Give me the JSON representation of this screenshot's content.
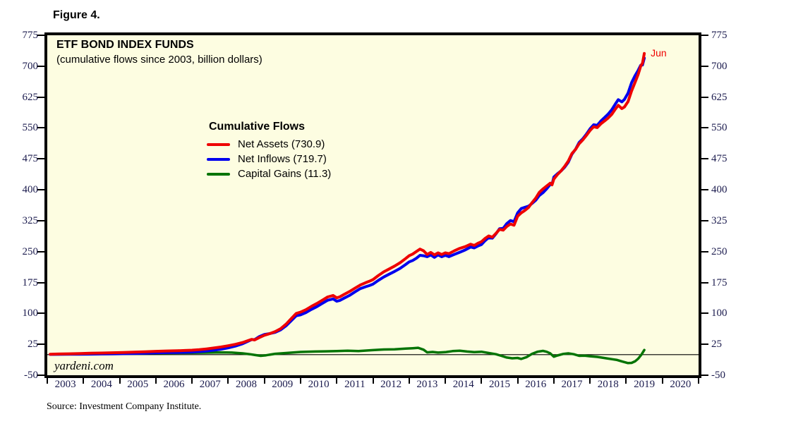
{
  "figure_label": "Figure 4.",
  "chart": {
    "title": "ETF BOND INDEX FUNDS",
    "subtitle": "(cumulative flows since 2003, billion dollars)",
    "watermark": "yardeni.com",
    "end_label": "Jun",
    "source": "Source: Investment Company Institute.",
    "legend": {
      "title": "Cumulative Flows",
      "items": [
        {
          "label": "Net Assets (730.9)",
          "color": "#ee0000"
        },
        {
          "label": "Net Inflows (719.7)",
          "color": "#0000ee"
        },
        {
          "label": "Capital Gains (11.3)",
          "color": "#047404"
        }
      ]
    }
  },
  "chart_data": {
    "type": "line",
    "title": "ETF BOND INDEX FUNDS",
    "subtitle": "(cumulative flows since 2003, billion dollars)",
    "plot_background": "#fdfde1",
    "zero_line": true,
    "x_axis": {
      "start": 2003,
      "end": 2021,
      "tick_labels": [
        "2003",
        "2004",
        "2005",
        "2006",
        "2007",
        "2008",
        "2009",
        "2010",
        "2011",
        "2012",
        "2013",
        "2014",
        "2015",
        "2016",
        "2017",
        "2018",
        "2019",
        "2020"
      ]
    },
    "y_axis": {
      "min": -50,
      "max": 775,
      "step": 75,
      "ticks": [
        775,
        700,
        625,
        550,
        475,
        400,
        325,
        250,
        175,
        100,
        25,
        -50
      ],
      "sides": "both"
    },
    "annotations": [
      {
        "text": "Jun",
        "t": 2019.5,
        "value": 730.9,
        "color": "#ee0000"
      }
    ],
    "series": [
      {
        "name": "Net Assets",
        "final_value": 730.9,
        "color": "#ee0000",
        "width": 4,
        "points": [
          [
            2003.08,
            1
          ],
          [
            2003.3,
            1.5
          ],
          [
            2003.6,
            2
          ],
          [
            2003.9,
            2.8
          ],
          [
            2004.2,
            3.4
          ],
          [
            2004.5,
            4
          ],
          [
            2004.8,
            4.6
          ],
          [
            2005.1,
            5.3
          ],
          [
            2005.4,
            6
          ],
          [
            2005.7,
            6.8
          ],
          [
            2006.0,
            8
          ],
          [
            2006.3,
            8.8
          ],
          [
            2006.6,
            9.4
          ],
          [
            2006.8,
            10
          ],
          [
            2007.0,
            10.8
          ],
          [
            2007.2,
            12
          ],
          [
            2007.4,
            13.8
          ],
          [
            2007.6,
            16
          ],
          [
            2007.8,
            18.5
          ],
          [
            2008.0,
            21.5
          ],
          [
            2008.2,
            25
          ],
          [
            2008.4,
            29.5
          ],
          [
            2008.55,
            34
          ],
          [
            2008.65,
            37
          ],
          [
            2008.73,
            35.5
          ],
          [
            2008.85,
            41
          ],
          [
            2009.0,
            47
          ],
          [
            2009.15,
            51
          ],
          [
            2009.3,
            56
          ],
          [
            2009.45,
            63
          ],
          [
            2009.6,
            74
          ],
          [
            2009.75,
            88
          ],
          [
            2009.88,
            100
          ],
          [
            2010.0,
            103
          ],
          [
            2010.15,
            109
          ],
          [
            2010.3,
            117
          ],
          [
            2010.45,
            124
          ],
          [
            2010.6,
            132
          ],
          [
            2010.75,
            140
          ],
          [
            2010.9,
            143.5
          ],
          [
            2011.0,
            138
          ],
          [
            2011.08,
            140
          ],
          [
            2011.2,
            146
          ],
          [
            2011.35,
            153
          ],
          [
            2011.5,
            161
          ],
          [
            2011.65,
            169
          ],
          [
            2011.8,
            174.5
          ],
          [
            2011.9,
            178
          ],
          [
            2012.0,
            182
          ],
          [
            2012.15,
            192
          ],
          [
            2012.3,
            201
          ],
          [
            2012.45,
            208
          ],
          [
            2012.6,
            215
          ],
          [
            2012.75,
            223
          ],
          [
            2012.9,
            233
          ],
          [
            2013.0,
            240
          ],
          [
            2013.1,
            244
          ],
          [
            2013.2,
            250
          ],
          [
            2013.3,
            256
          ],
          [
            2013.4,
            252
          ],
          [
            2013.5,
            243
          ],
          [
            2013.6,
            248
          ],
          [
            2013.7,
            242
          ],
          [
            2013.8,
            247
          ],
          [
            2013.9,
            243
          ],
          [
            2014.0,
            247
          ],
          [
            2014.1,
            245
          ],
          [
            2014.25,
            252
          ],
          [
            2014.4,
            258
          ],
          [
            2014.55,
            262
          ],
          [
            2014.7,
            268
          ],
          [
            2014.8,
            265
          ],
          [
            2014.9,
            270
          ],
          [
            2015.0,
            274
          ],
          [
            2015.1,
            282
          ],
          [
            2015.2,
            288
          ],
          [
            2015.3,
            285
          ],
          [
            2015.4,
            294
          ],
          [
            2015.5,
            304
          ],
          [
            2015.6,
            302
          ],
          [
            2015.7,
            311
          ],
          [
            2015.8,
            317
          ],
          [
            2015.9,
            314
          ],
          [
            2016.0,
            336
          ],
          [
            2016.1,
            344
          ],
          [
            2016.2,
            350
          ],
          [
            2016.3,
            357
          ],
          [
            2016.4,
            369
          ],
          [
            2016.5,
            380
          ],
          [
            2016.6,
            394
          ],
          [
            2016.7,
            402
          ],
          [
            2016.8,
            409
          ],
          [
            2016.9,
            416
          ],
          [
            2016.95,
            412
          ],
          [
            2017.0,
            426
          ],
          [
            2017.1,
            437
          ],
          [
            2017.2,
            446
          ],
          [
            2017.3,
            457
          ],
          [
            2017.4,
            470
          ],
          [
            2017.5,
            488
          ],
          [
            2017.6,
            498
          ],
          [
            2017.7,
            512
          ],
          [
            2017.8,
            521
          ],
          [
            2017.9,
            532
          ],
          [
            2018.0,
            544
          ],
          [
            2018.1,
            553
          ],
          [
            2018.2,
            551
          ],
          [
            2018.3,
            560
          ],
          [
            2018.4,
            567
          ],
          [
            2018.5,
            574
          ],
          [
            2018.6,
            583
          ],
          [
            2018.7,
            596
          ],
          [
            2018.78,
            605
          ],
          [
            2018.88,
            597
          ],
          [
            2018.95,
            601
          ],
          [
            2019.05,
            614
          ],
          [
            2019.15,
            640
          ],
          [
            2019.25,
            662
          ],
          [
            2019.33,
            680
          ],
          [
            2019.4,
            700
          ],
          [
            2019.45,
            707
          ],
          [
            2019.5,
            730.9
          ]
        ]
      },
      {
        "name": "Net Inflows",
        "final_value": 719.7,
        "color": "#0000ee",
        "width": 4,
        "derived": "net_assets_minus_capital_gains"
      },
      {
        "name": "Capital Gains",
        "final_value": 11.3,
        "color": "#047404",
        "width": 3.5,
        "points": [
          [
            2003.08,
            0.5
          ],
          [
            2003.5,
            1
          ],
          [
            2004.0,
            2
          ],
          [
            2004.5,
            2.5
          ],
          [
            2005.0,
            3
          ],
          [
            2005.5,
            3.2
          ],
          [
            2006.0,
            3.5
          ],
          [
            2006.5,
            4
          ],
          [
            2007.0,
            4.5
          ],
          [
            2007.5,
            5
          ],
          [
            2007.8,
            5.5
          ],
          [
            2008.1,
            5
          ],
          [
            2008.4,
            3
          ],
          [
            2008.6,
            1
          ],
          [
            2008.75,
            -1
          ],
          [
            2008.9,
            -3
          ],
          [
            2009.05,
            -1.5
          ],
          [
            2009.3,
            2
          ],
          [
            2009.6,
            4
          ],
          [
            2010.0,
            6.5
          ],
          [
            2010.4,
            7.5
          ],
          [
            2010.7,
            8
          ],
          [
            2011.0,
            8.5
          ],
          [
            2011.3,
            9.5
          ],
          [
            2011.6,
            8.5
          ],
          [
            2012.0,
            11
          ],
          [
            2012.3,
            12.5
          ],
          [
            2012.6,
            13
          ],
          [
            2012.9,
            14.5
          ],
          [
            2013.1,
            15.5
          ],
          [
            2013.25,
            16.5
          ],
          [
            2013.4,
            12
          ],
          [
            2013.5,
            5.5
          ],
          [
            2013.65,
            6.5
          ],
          [
            2013.8,
            5
          ],
          [
            2014.0,
            6
          ],
          [
            2014.2,
            8.5
          ],
          [
            2014.4,
            9.5
          ],
          [
            2014.6,
            7.5
          ],
          [
            2014.8,
            6
          ],
          [
            2015.0,
            7
          ],
          [
            2015.2,
            4
          ],
          [
            2015.4,
            1
          ],
          [
            2015.55,
            -3
          ],
          [
            2015.7,
            -7
          ],
          [
            2015.85,
            -9
          ],
          [
            2016.0,
            -8
          ],
          [
            2016.1,
            -10.5
          ],
          [
            2016.25,
            -6
          ],
          [
            2016.4,
            2
          ],
          [
            2016.55,
            7
          ],
          [
            2016.7,
            9
          ],
          [
            2016.8,
            7
          ],
          [
            2016.9,
            3
          ],
          [
            2017.0,
            -5
          ],
          [
            2017.1,
            -2
          ],
          [
            2017.25,
            1.5
          ],
          [
            2017.4,
            3
          ],
          [
            2017.55,
            1
          ],
          [
            2017.7,
            -3
          ],
          [
            2017.85,
            -2.5
          ],
          [
            2018.0,
            -4
          ],
          [
            2018.2,
            -5.5
          ],
          [
            2018.45,
            -9
          ],
          [
            2018.6,
            -11
          ],
          [
            2018.75,
            -13
          ],
          [
            2018.9,
            -17
          ],
          [
            2019.05,
            -20.5
          ],
          [
            2019.15,
            -20
          ],
          [
            2019.25,
            -16
          ],
          [
            2019.33,
            -10
          ],
          [
            2019.42,
            0
          ],
          [
            2019.5,
            11.3
          ]
        ]
      }
    ]
  }
}
